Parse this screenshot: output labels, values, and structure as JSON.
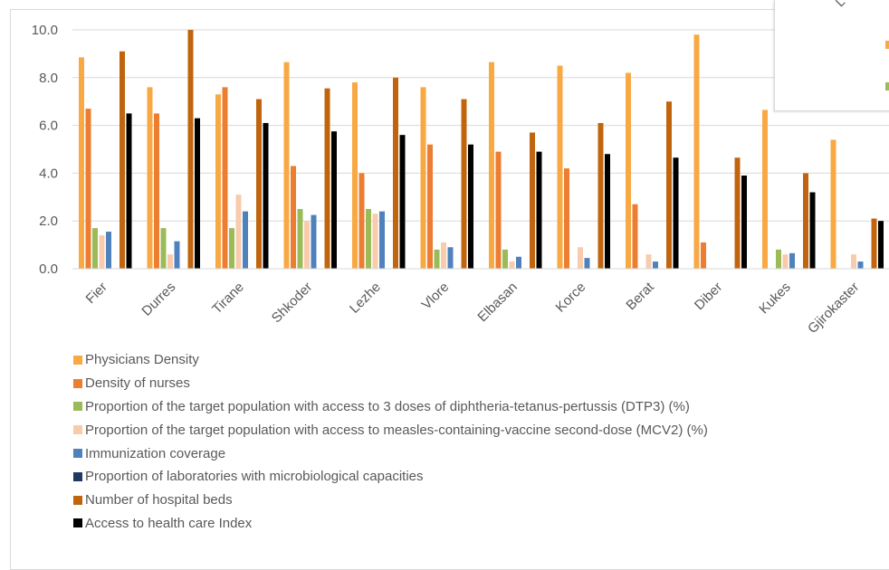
{
  "chart_data": {
    "type": "bar",
    "title": "",
    "xlabel": "",
    "ylabel": "",
    "ylim": [
      0,
      10
    ],
    "yticks": [
      "0.0",
      "2.0",
      "4.0",
      "6.0",
      "8.0",
      "10.0"
    ],
    "grid": true,
    "legend_position": "bottom",
    "categories": [
      "Fier",
      "Durres",
      "Tirane",
      "Shkoder",
      "Lezhe",
      "Vlore",
      "Elbasan",
      "Korce",
      "Berat",
      "Diber",
      "Kukes",
      "Gjirokaster"
    ],
    "series": [
      {
        "name": "Physicians Density",
        "color": "#F8A944",
        "values": [
          8.85,
          7.6,
          7.3,
          8.65,
          7.8,
          7.6,
          8.65,
          8.5,
          8.2,
          9.8,
          6.65,
          5.4
        ]
      },
      {
        "name": "Density of nurses",
        "color": "#ED7D31",
        "values": [
          6.7,
          6.5,
          7.6,
          4.3,
          4.0,
          5.2,
          4.9,
          4.2,
          2.7,
          1.1,
          0.0,
          0.0
        ]
      },
      {
        "name": "Proportion of the target population with access to 3 doses of diphtheria-tetanus-pertussis (DTP3) (%)",
        "color": "#9BBB59",
        "values": [
          1.7,
          1.7,
          1.7,
          2.5,
          2.5,
          0.8,
          0.8,
          0.0,
          0.0,
          0.0,
          0.8,
          0.0
        ]
      },
      {
        "name": "Proportion of the target population with access to measles-containing-vaccine second-dose (MCV2) (%)",
        "color": "#F8CBAD",
        "values": [
          1.4,
          0.6,
          3.1,
          2.0,
          2.3,
          1.1,
          0.3,
          0.9,
          0.6,
          0.0,
          0.6,
          0.6
        ]
      },
      {
        "name": "Immunization coverage",
        "color": "#4F81BD",
        "values": [
          1.55,
          1.15,
          2.4,
          2.25,
          2.4,
          0.9,
          0.5,
          0.45,
          0.3,
          0.0,
          0.65,
          0.3
        ]
      },
      {
        "name": "Proportion of laboratories with microbiological capacities",
        "color": "#1F3864",
        "values": [
          0.0,
          0.0,
          0.0,
          0.0,
          0.0,
          0.0,
          0.0,
          0.0,
          0.0,
          0.0,
          0.0,
          0.0
        ]
      },
      {
        "name": "Number of hospital beds",
        "color": "#C0650E",
        "values": [
          9.1,
          10.0,
          7.1,
          7.55,
          8.0,
          7.1,
          5.7,
          6.1,
          7.0,
          4.65,
          4.0,
          2.1
        ]
      },
      {
        "name": "Access to health care Index",
        "color": "#000000",
        "values": [
          6.5,
          6.3,
          6.1,
          5.75,
          5.6,
          5.2,
          4.9,
          4.8,
          4.65,
          3.9,
          3.2,
          2.0
        ]
      }
    ]
  },
  "overlay": {
    "glyph": "L",
    "swatch_colors": [
      "#F8A944",
      "#9BBB59"
    ]
  }
}
